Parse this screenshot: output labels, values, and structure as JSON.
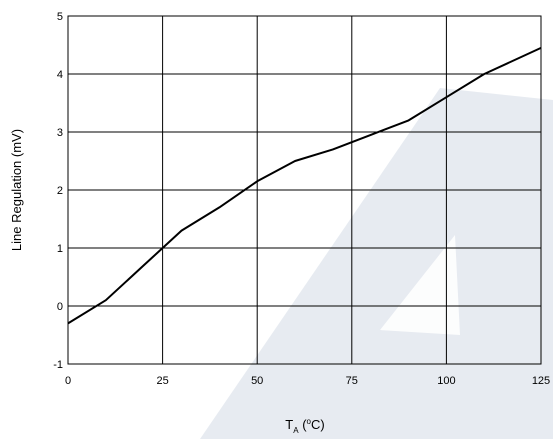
{
  "chart_data": {
    "type": "line",
    "title": "",
    "xlabel": "T",
    "xlabel_subscript": "A",
    "xlabel_unit_open": " (",
    "xlabel_unit_degree": "o",
    "xlabel_unit_close": "C)",
    "ylabel": "Line Regulation (mV)",
    "xlim": [
      0,
      125
    ],
    "ylim": [
      -1,
      5
    ],
    "x_ticks": [
      0,
      25,
      50,
      75,
      100,
      125
    ],
    "y_ticks": [
      -1,
      0,
      1,
      2,
      3,
      4,
      5
    ],
    "grid": true,
    "legend": "none",
    "series": [
      {
        "color": "#000000",
        "x": [
          0,
          10,
          20,
          30,
          40,
          50,
          60,
          70,
          80,
          90,
          100,
          110,
          125
        ],
        "y": [
          -0.3,
          0.1,
          0.7,
          1.3,
          1.7,
          2.15,
          2.5,
          2.7,
          2.95,
          3.2,
          3.6,
          4.0,
          4.45
        ]
      }
    ],
    "watermark_color": "#d4dbe6"
  }
}
